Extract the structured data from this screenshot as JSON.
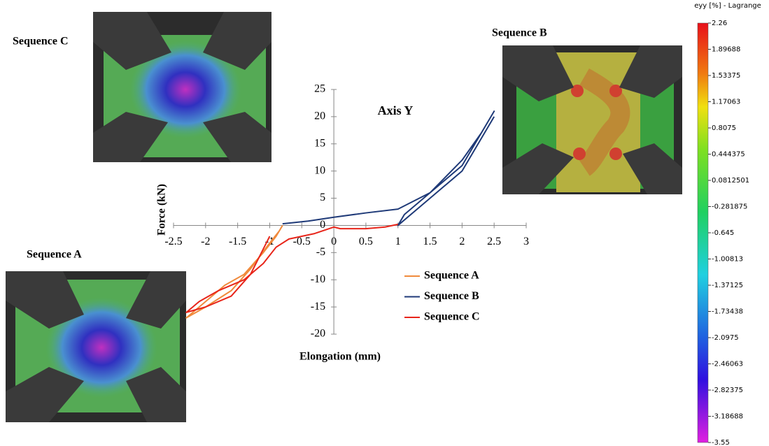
{
  "chart_data": [
    {
      "type": "line",
      "annotations": [
        "Axis Y",
        "Sequence C",
        "Sequence B",
        "Sequence A"
      ],
      "xlabel": "Elongation (mm)",
      "ylabel": "Force (kN)",
      "xlim": [
        -2.5,
        3
      ],
      "ylim": [
        -20,
        25
      ],
      "xticks": [
        -2.5,
        -2,
        -1.5,
        -1,
        -0.5,
        0,
        0.5,
        1,
        1.5,
        2,
        2.5,
        3
      ],
      "yticks": [
        -20,
        -15,
        -10,
        -5,
        0,
        5,
        10,
        15,
        20,
        25
      ],
      "series": [
        {
          "name": "Sequence A",
          "color": "#f08a3c",
          "x": [
            -0.8,
            -0.9,
            -1.1,
            -1.4,
            -1.7,
            -2.0,
            -2.3,
            -2.0,
            -1.6,
            -1.3,
            -1.05,
            -0.85
          ],
          "values": [
            0,
            -2,
            -5,
            -9,
            -11,
            -14,
            -17,
            -15,
            -12,
            -8,
            -4,
            -1
          ]
        },
        {
          "name": "Sequence B",
          "color": "#1f3a78",
          "x": [
            -0.8,
            -0.4,
            0,
            0.5,
            1,
            1.5,
            2,
            2.5,
            2.3,
            2,
            1.5,
            1.1,
            1,
            1.3,
            2,
            2.5
          ],
          "values": [
            0.3,
            0.8,
            1.5,
            2.3,
            3,
            6,
            11,
            21,
            17,
            12,
            6,
            2,
            0,
            3,
            10,
            20
          ]
        },
        {
          "name": "Sequence C",
          "color": "#e8251a",
          "x": [
            1,
            0.8,
            0.5,
            0.1,
            0,
            -0.3,
            -0.7,
            -0.9,
            -1.1,
            -1.4,
            -1.8,
            -2.1,
            -2.3,
            -2.0,
            -1.6,
            -1.3,
            -1.0
          ],
          "values": [
            0.2,
            -0.3,
            -0.6,
            -0.6,
            -0.3,
            -1.5,
            -2.5,
            -4,
            -7,
            -10,
            -12,
            -14,
            -16,
            -15,
            -13,
            -9,
            -2
          ]
        }
      ]
    },
    {
      "type": "colorbar",
      "title": "eyy [%] - Lagrange",
      "ylim": [
        -3.55,
        2.26
      ],
      "yticks": [
        2.26,
        1.89688,
        1.53375,
        1.17063,
        0.8075,
        0.444375,
        0.0812501,
        -0.281875,
        -0.645,
        -1.00813,
        -1.37125,
        -1.73438,
        -2.0975,
        -2.46063,
        -2.82375,
        -3.18688,
        -3.55
      ]
    }
  ]
}
